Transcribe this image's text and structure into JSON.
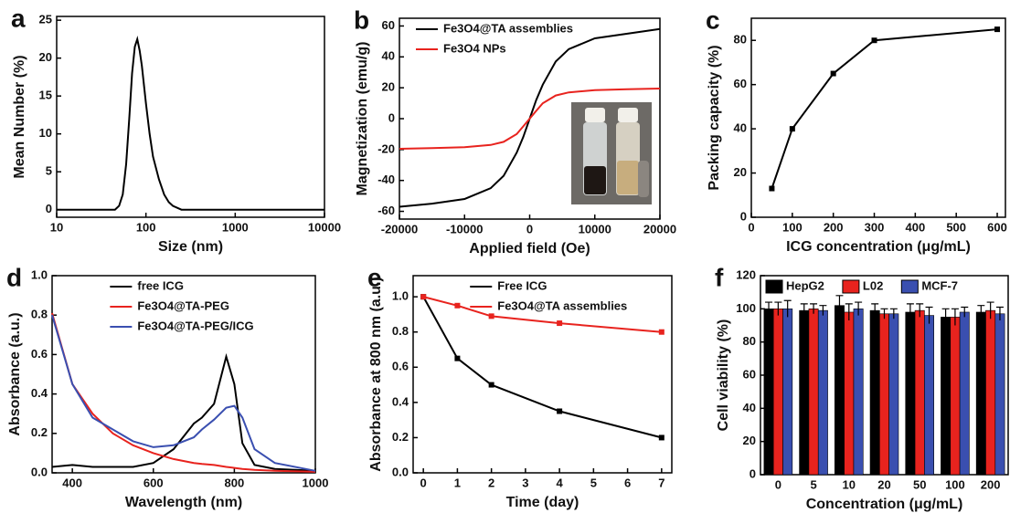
{
  "chart_data": [
    {
      "type": "line",
      "label": "a",
      "xlabel": "Size (nm)",
      "ylabel": "Mean Number (%)",
      "xscale": "log",
      "xlim": [
        10,
        10000
      ],
      "xticks": [
        10,
        100,
        1000,
        10000
      ],
      "ylim": [
        -1,
        25.5
      ],
      "yticks": [
        0,
        5,
        10,
        15,
        20,
        25
      ],
      "x": [
        10,
        30,
        45,
        50,
        55,
        60,
        65,
        70,
        75,
        80,
        85,
        90,
        100,
        110,
        120,
        140,
        160,
        180,
        200,
        250,
        300,
        1000,
        10000
      ],
      "series": [
        {
          "color": "#000000",
          "values": [
            0,
            0,
            0,
            0.5,
            2,
            6,
            12,
            18,
            21.5,
            22.5,
            21,
            19,
            14,
            10,
            7,
            4,
            2,
            1,
            0.5,
            0,
            0,
            0,
            0
          ]
        }
      ]
    },
    {
      "type": "line",
      "label": "b",
      "xlabel": "Applied field (Oe)",
      "ylabel": "Magnetization (emu/g)",
      "legend": "upper left",
      "xlim": [
        -20000,
        20000
      ],
      "xticks": [
        -20000,
        -10000,
        0,
        10000,
        20000
      ],
      "ylim": [
        -65,
        65
      ],
      "yticks": [
        -60,
        -40,
        -20,
        0,
        20,
        40,
        60
      ],
      "x": [
        -20000,
        -15000,
        -10000,
        -6000,
        -4000,
        -2000,
        -1000,
        0,
        1000,
        2000,
        4000,
        6000,
        10000,
        15000,
        20000
      ],
      "series": [
        {
          "name": "Fe3O4@TA assemblies",
          "color": "#000000",
          "values": [
            -57,
            -55,
            -52,
            -45,
            -37,
            -22,
            -12,
            0,
            12,
            22,
            37,
            45,
            52,
            55,
            58
          ]
        },
        {
          "name": "Fe3O4 NPs",
          "color": "#e8231e",
          "values": [
            -19.5,
            -19,
            -18.5,
            -17,
            -15,
            -10,
            -5,
            0,
            5,
            10,
            15,
            17,
            18.5,
            19,
            19.5
          ]
        }
      ]
    },
    {
      "type": "line",
      "label": "c",
      "xlabel": "ICG concentration (μg/mL)",
      "ylabel": "Packing capacity (%)",
      "markers": true,
      "xlim": [
        0,
        620
      ],
      "xticks": [
        0,
        100,
        200,
        300,
        400,
        500,
        600
      ],
      "ylim": [
        0,
        90
      ],
      "yticks": [
        0,
        20,
        40,
        60,
        80
      ],
      "x": [
        50,
        100,
        200,
        300,
        600
      ],
      "series": [
        {
          "color": "#000000",
          "values": [
            13,
            40,
            65,
            80,
            85
          ]
        }
      ]
    },
    {
      "type": "line",
      "label": "d",
      "xlabel": "Wavelength (nm)",
      "ylabel": "Absorbance (a.u.)",
      "legend": "upper center",
      "xlim": [
        350,
        1000
      ],
      "xticks": [
        400,
        600,
        800,
        1000
      ],
      "ylim": [
        0,
        1.0
      ],
      "yticks": [
        {
          "value": 0,
          "label": "0.0"
        },
        0.2,
        0.4,
        0.6,
        0.8,
        {
          "value": 1,
          "label": "1.0"
        }
      ],
      "x": [
        350,
        400,
        450,
        500,
        550,
        600,
        650,
        700,
        720,
        750,
        780,
        800,
        820,
        850,
        900,
        1000
      ],
      "series": [
        {
          "name": "free ICG",
          "color": "#000000",
          "values": [
            0.03,
            0.04,
            0.03,
            0.03,
            0.03,
            0.05,
            0.12,
            0.25,
            0.28,
            0.35,
            0.59,
            0.45,
            0.15,
            0.04,
            0.02,
            0.01
          ]
        },
        {
          "name": "Fe3O4@TA-PEG",
          "color": "#e8231e",
          "values": [
            0.81,
            0.45,
            0.3,
            0.2,
            0.14,
            0.1,
            0.07,
            0.05,
            0.045,
            0.04,
            0.03,
            0.025,
            0.02,
            0.015,
            0.01,
            0.005
          ]
        },
        {
          "name": "Fe3O4@TA-PEG/ICG",
          "color": "#3a4fb0",
          "values": [
            0.8,
            0.45,
            0.28,
            0.22,
            0.16,
            0.13,
            0.14,
            0.18,
            0.22,
            0.27,
            0.33,
            0.34,
            0.28,
            0.12,
            0.05,
            0.01
          ]
        }
      ]
    },
    {
      "type": "line",
      "label": "e",
      "xlabel": "Time (day)",
      "ylabel": "Absorbance at 800 nm (a.u.)",
      "legend": "upper center",
      "markers": true,
      "xlim": [
        -0.3,
        7.3
      ],
      "xticks": [
        0,
        1,
        2,
        3,
        4,
        5,
        6,
        7
      ],
      "ylim": [
        0,
        1.12
      ],
      "yticks": [
        {
          "value": 0,
          "label": "0.0"
        },
        0.2,
        0.4,
        0.6,
        0.8,
        {
          "value": 1,
          "label": "1.0"
        }
      ],
      "x": [
        0,
        1,
        2,
        4,
        7
      ],
      "series": [
        {
          "name": "Free ICG",
          "color": "#000000",
          "values": [
            1.0,
            0.65,
            0.5,
            0.35,
            0.2
          ]
        },
        {
          "name": "Fe3O4@TA assemblies",
          "color": "#e8231e",
          "values": [
            1.0,
            0.95,
            0.89,
            0.85,
            0.8
          ]
        }
      ]
    },
    {
      "type": "bar",
      "label": "f",
      "xlabel": "Concentration (μg/mL)",
      "ylabel": "Cell viability (%)",
      "legend": "top",
      "categories": [
        "0",
        "5",
        "10",
        "20",
        "50",
        "100",
        "200"
      ],
      "ylim": [
        0,
        120
      ],
      "yticks": [
        0,
        20,
        40,
        60,
        80,
        100,
        120
      ],
      "series": [
        {
          "name": "HepG2",
          "color": "#000000",
          "values": [
            100,
            99,
            102,
            99,
            98,
            95,
            98
          ],
          "errors": [
            4,
            4,
            6,
            4,
            5,
            5,
            4
          ]
        },
        {
          "name": "L02",
          "color": "#e8231e",
          "values": [
            100,
            100,
            98,
            97,
            99,
            95,
            99
          ],
          "errors": [
            4,
            3,
            5,
            3,
            4,
            5,
            5
          ]
        },
        {
          "name": "MCF-7",
          "color": "#3a4fb0",
          "values": [
            100,
            99,
            100,
            97,
            96,
            98,
            97
          ],
          "errors": [
            5,
            3,
            4,
            3,
            5,
            3,
            4
          ]
        }
      ]
    }
  ]
}
